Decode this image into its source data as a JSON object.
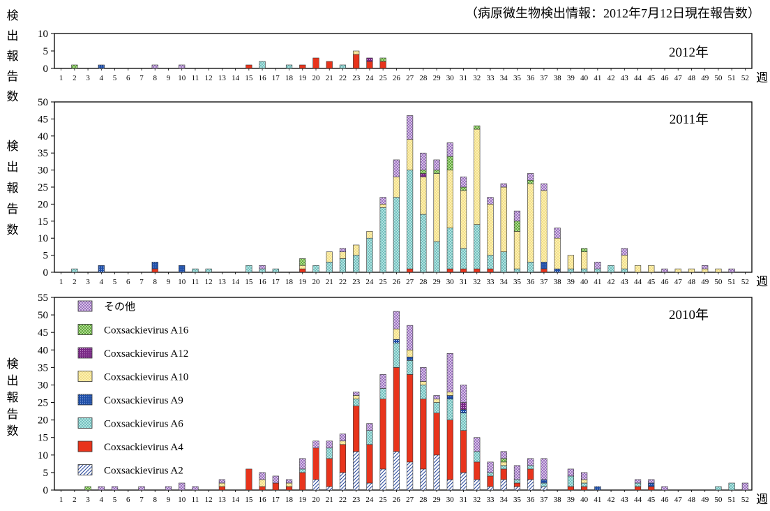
{
  "page": {
    "title": "（病原微生物検出情報：2012年7月12日現在報告数）",
    "ylabel_chars": [
      "検",
      "出",
      "報",
      "告",
      "数"
    ],
    "xlabel": "週"
  },
  "colors": {
    "A2": "#2b4a9e",
    "A4": "#e8341c",
    "A6": "#a8e0df",
    "A9": "#1f4fa8",
    "A10": "#fbeba0",
    "A12": "#7a2a86",
    "A16": "#9ed47a",
    "other": "#cdb7e0"
  },
  "chart_data": [
    {
      "type": "bar",
      "stacked": true,
      "label": "2012年",
      "weeks": [
        1,
        2,
        3,
        4,
        5,
        6,
        7,
        8,
        9,
        10,
        11,
        12,
        13,
        14,
        15,
        16,
        17,
        18,
        19,
        20,
        21,
        22,
        23,
        24,
        25,
        26,
        27,
        28,
        29,
        30,
        31,
        32,
        33,
        34,
        35,
        36,
        37,
        38,
        39,
        40,
        41,
        42,
        43,
        44,
        45,
        46,
        47,
        48,
        49,
        50,
        51,
        52
      ],
      "ylim": [
        0,
        10
      ],
      "yticks": [
        0,
        5,
        10
      ],
      "stacks": {
        "2": {
          "A16": 1
        },
        "4": {
          "A9": 1
        },
        "8": {
          "other": 1
        },
        "10": {
          "other": 1
        },
        "15": {
          "A4": 1
        },
        "16": {
          "A6": 2
        },
        "18": {
          "A6": 1
        },
        "19": {
          "A4": 1
        },
        "20": {
          "A4": 3
        },
        "21": {
          "A4": 2
        },
        "22": {
          "A6": 1
        },
        "23": {
          "A4": 4,
          "A10": 1
        },
        "24": {
          "A4": 2,
          "A12": 1
        },
        "25": {
          "A4": 2,
          "A16": 1
        }
      }
    },
    {
      "type": "bar",
      "stacked": true,
      "label": "2011年",
      "weeks": [
        1,
        2,
        3,
        4,
        5,
        6,
        7,
        8,
        9,
        10,
        11,
        12,
        13,
        14,
        15,
        16,
        17,
        18,
        19,
        20,
        21,
        22,
        23,
        24,
        25,
        26,
        27,
        28,
        29,
        30,
        31,
        32,
        33,
        34,
        35,
        36,
        37,
        38,
        39,
        40,
        41,
        42,
        43,
        44,
        45,
        46,
        47,
        48,
        49,
        50,
        51,
        52
      ],
      "ylim": [
        0,
        50
      ],
      "yticks": [
        0,
        5,
        10,
        15,
        20,
        25,
        30,
        35,
        40,
        45,
        50
      ],
      "stacks": {
        "2": {
          "A6": 1
        },
        "4": {
          "A9": 2
        },
        "8": {
          "A4": 1,
          "A9": 2
        },
        "10": {
          "A9": 2
        },
        "11": {
          "A6": 1
        },
        "12": {
          "A6": 1
        },
        "15": {
          "A6": 2
        },
        "16": {
          "A6": 1,
          "other": 1
        },
        "17": {
          "A6": 1
        },
        "19": {
          "A4": 1,
          "A10": 1,
          "A16": 2
        },
        "20": {
          "A6": 2
        },
        "21": {
          "A6": 3,
          "A10": 3
        },
        "22": {
          "A6": 4,
          "A10": 2,
          "other": 1
        },
        "23": {
          "A6": 5,
          "A10": 3
        },
        "24": {
          "A6": 10,
          "A10": 2
        },
        "25": {
          "A6": 19,
          "A10": 1,
          "other": 2
        },
        "26": {
          "A6": 22,
          "A10": 6,
          "other": 5
        },
        "27": {
          "A4": 1,
          "A6": 29,
          "A10": 9,
          "other": 7
        },
        "28": {
          "A6": 17,
          "A10": 11,
          "A12": 1,
          "A16": 1,
          "other": 5
        },
        "29": {
          "A6": 9,
          "A10": 20,
          "A16": 1,
          "other": 3
        },
        "30": {
          "A4": 1,
          "A6": 12,
          "A10": 17,
          "A16": 4,
          "other": 4
        },
        "31": {
          "A4": 1,
          "A6": 6,
          "A10": 17,
          "A16": 1,
          "other": 3
        },
        "32": {
          "A4": 1,
          "A6": 13,
          "A10": 28,
          "A16": 1
        },
        "33": {
          "A4": 1,
          "A6": 4,
          "A10": 15,
          "other": 2
        },
        "34": {
          "A6": 6,
          "A10": 19,
          "other": 1
        },
        "35": {
          "A6": 1,
          "A10": 11,
          "A16": 3,
          "other": 3
        },
        "36": {
          "A6": 3,
          "A10": 23,
          "A16": 1,
          "other": 2
        },
        "37": {
          "A4": 1,
          "A9": 2,
          "A10": 21,
          "other": 2
        },
        "38": {
          "A9": 1,
          "A10": 9,
          "other": 3
        },
        "39": {
          "A6": 1,
          "A10": 4
        },
        "40": {
          "A6": 1,
          "A10": 5,
          "A16": 1
        },
        "41": {
          "A6": 1,
          "other": 2
        },
        "42": {
          "A6": 2
        },
        "43": {
          "A6": 1,
          "A10": 4,
          "other": 2
        },
        "44": {
          "A10": 2
        },
        "45": {
          "A10": 2
        },
        "46": {
          "other": 1
        },
        "47": {
          "A10": 1
        },
        "48": {
          "A10": 1
        },
        "49": {
          "A10": 1,
          "other": 1
        },
        "50": {
          "A10": 1
        },
        "51": {
          "other": 1
        }
      }
    },
    {
      "type": "bar",
      "stacked": true,
      "label": "2010年",
      "weeks": [
        1,
        2,
        3,
        4,
        5,
        6,
        7,
        8,
        9,
        10,
        11,
        12,
        13,
        14,
        15,
        16,
        17,
        18,
        19,
        20,
        21,
        22,
        23,
        24,
        25,
        26,
        27,
        28,
        29,
        30,
        31,
        32,
        33,
        34,
        35,
        36,
        37,
        38,
        39,
        40,
        41,
        42,
        43,
        44,
        45,
        46,
        47,
        48,
        49,
        50,
        51,
        52
      ],
      "ylim": [
        0,
        55
      ],
      "yticks": [
        0,
        5,
        10,
        15,
        20,
        25,
        30,
        35,
        40,
        45,
        50,
        55
      ],
      "legend": [
        {
          "key": "other",
          "label": "その他"
        },
        {
          "key": "A16",
          "label": "Coxsackievirus A16"
        },
        {
          "key": "A12",
          "label": "Coxsackievirus A12"
        },
        {
          "key": "A10",
          "label": "Coxsackievirus A10"
        },
        {
          "key": "A9",
          "label": "Coxsackievirus A9"
        },
        {
          "key": "A6",
          "label": "Coxsackievirus A6"
        },
        {
          "key": "A4",
          "label": "Coxsackievirus A4"
        },
        {
          "key": "A2",
          "label": "Coxsackievirus A2"
        }
      ],
      "stacks": {
        "3": {
          "A16": 1
        },
        "4": {
          "other": 1
        },
        "5": {
          "other": 1
        },
        "7": {
          "other": 1
        },
        "9": {
          "other": 1
        },
        "10": {
          "other": 2
        },
        "11": {
          "other": 1
        },
        "13": {
          "A4": 1,
          "A10": 1,
          "other": 1
        },
        "15": {
          "A4": 6
        },
        "16": {
          "A4": 1,
          "A10": 2,
          "other": 2
        },
        "17": {
          "A4": 2,
          "other": 2
        },
        "18": {
          "A4": 1,
          "A10": 1,
          "other": 1
        },
        "19": {
          "A4": 5,
          "A6": 1,
          "other": 3
        },
        "20": {
          "A2": 3,
          "A4": 9,
          "other": 2
        },
        "21": {
          "A2": 1,
          "A4": 8,
          "A6": 3,
          "other": 2
        },
        "22": {
          "A2": 5,
          "A4": 8,
          "A10": 1,
          "other": 2
        },
        "23": {
          "A2": 11,
          "A4": 13,
          "A6": 2,
          "A10": 1,
          "other": 1
        },
        "24": {
          "A2": 2,
          "A4": 11,
          "A6": 4,
          "other": 2
        },
        "25": {
          "A2": 6,
          "A4": 20,
          "A6": 3,
          "other": 4
        },
        "26": {
          "A2": 11,
          "A4": 24,
          "A6": 7,
          "A9": 1,
          "A10": 3,
          "other": 5
        },
        "27": {
          "A2": 8,
          "A4": 25,
          "A6": 4,
          "A9": 1,
          "A10": 2,
          "other": 7
        },
        "28": {
          "A2": 6,
          "A4": 20,
          "A6": 4,
          "A10": 1,
          "other": 4
        },
        "29": {
          "A2": 10,
          "A4": 12,
          "A6": 3,
          "A10": 1,
          "other": 1
        },
        "30": {
          "A2": 3,
          "A4": 17,
          "A6": 6,
          "A9": 1,
          "A10": 1,
          "other": 11
        },
        "31": {
          "A2": 5,
          "A4": 12,
          "A6": 5,
          "A9": 1,
          "A12": 2,
          "other": 5
        },
        "32": {
          "A2": 3,
          "A4": 5,
          "A6": 3,
          "other": 4
        },
        "33": {
          "A2": 1,
          "A4": 3,
          "A6": 1,
          "other": 3
        },
        "34": {
          "A2": 3,
          "A4": 3,
          "A6": 1,
          "A10": 1,
          "A16": 1,
          "other": 2
        },
        "35": {
          "A2": 1,
          "A4": 1,
          "A6": 1,
          "other": 4
        },
        "36": {
          "A2": 3,
          "A4": 3,
          "A6": 1,
          "other": 2
        },
        "37": {
          "A2": 1,
          "A6": 1,
          "A9": 1,
          "other": 6
        },
        "39": {
          "A4": 1,
          "A6": 3,
          "other": 2
        },
        "40": {
          "A4": 1,
          "A6": 1,
          "A10": 1,
          "other": 2
        },
        "41": {
          "A9": 1
        },
        "44": {
          "A4": 1,
          "A6": 1,
          "other": 1
        },
        "45": {
          "A4": 1,
          "A9": 1,
          "other": 1
        },
        "46": {
          "other": 1
        },
        "50": {
          "A6": 1
        },
        "51": {
          "A6": 2
        },
        "52": {
          "other": 2
        }
      }
    }
  ]
}
